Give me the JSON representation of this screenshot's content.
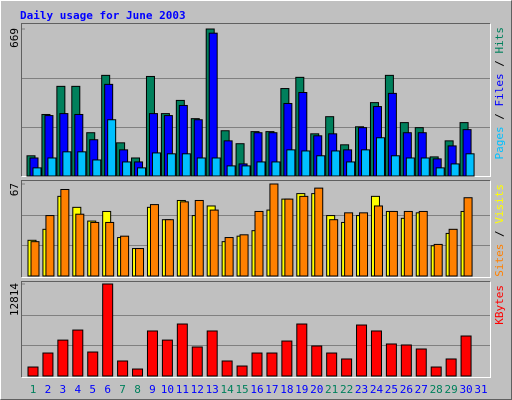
{
  "title": "Daily usage for June 2003",
  "legend_separator": " / ",
  "chart_data": [
    {
      "type": "bar",
      "ylim": [
        0,
        669
      ],
      "yticks": [
        669
      ],
      "series": [
        {
          "name": "Hits",
          "color": "#00805c",
          "values": [
            92,
            280,
            408,
            408,
            197,
            458,
            151,
            82,
            453,
            284,
            344,
            261,
            669,
            206,
            147,
            202,
            202,
            398,
            449,
            192,
            270,
            142,
            224,
            334,
            458,
            243,
            220,
            87,
            160,
            243,
            null
          ]
        },
        {
          "name": "Files",
          "color": "#0000ff",
          "values": [
            82,
            275,
            284,
            280,
            165,
            417,
            119,
            64,
            284,
            275,
            321,
            256,
            650,
            160,
            55,
            197,
            197,
            330,
            380,
            183,
            192,
            119,
            220,
            316,
            376,
            197,
            197,
            78,
            137,
            211,
            null
          ]
        },
        {
          "name": "Pages",
          "color": "#00c0ff",
          "values": [
            37,
            82,
            110,
            110,
            73,
            256,
            64,
            37,
            105,
            101,
            101,
            82,
            82,
            46,
            46,
            64,
            64,
            119,
            114,
            92,
            114,
            64,
            119,
            174,
            92,
            82,
            82,
            37,
            55,
            101,
            null
          ]
        }
      ]
    },
    {
      "type": "bar",
      "ylim": [
        0,
        67
      ],
      "yticks": [
        67
      ],
      "series": [
        {
          "name": "Visits",
          "color": "#ffff00",
          "values": [
            26,
            34,
            58,
            50,
            40,
            47,
            28,
            20,
            50,
            41,
            55,
            44,
            51,
            25,
            29,
            33,
            48,
            56,
            60,
            60,
            44,
            39,
            44,
            58,
            47,
            42,
            46,
            22,
            31,
            47,
            null
          ]
        },
        {
          "name": "Sites",
          "color": "#ff8000",
          "values": [
            25,
            44,
            63,
            45,
            39,
            39,
            29,
            20,
            52,
            41,
            54,
            55,
            48,
            28,
            30,
            47,
            67,
            56,
            58,
            64,
            41,
            46,
            46,
            51,
            47,
            47,
            47,
            23,
            34,
            57,
            null
          ]
        }
      ]
    },
    {
      "type": "bar",
      "ylim": [
        0,
        12814
      ],
      "yticks": [
        12814
      ],
      "categories": [
        "1",
        "2",
        "3",
        "4",
        "5",
        "6",
        "7",
        "8",
        "9",
        "10",
        "11",
        "12",
        "13",
        "14",
        "15",
        "16",
        "17",
        "18",
        "19",
        "20",
        "21",
        "22",
        "23",
        "24",
        "25",
        "26",
        "27",
        "28",
        "29",
        "30",
        "31"
      ],
      "category_colors": [
        "#00805c",
        "#0000ff",
        "#0000ff",
        "#0000ff",
        "#0000ff",
        "#0000ff",
        "#00805c",
        "#00805c",
        "#0000ff",
        "#0000ff",
        "#0000ff",
        "#0000ff",
        "#0000ff",
        "#00805c",
        "#00805c",
        "#0000ff",
        "#0000ff",
        "#0000ff",
        "#0000ff",
        "#0000ff",
        "#00805c",
        "#00805c",
        "#0000ff",
        "#0000ff",
        "#0000ff",
        "#0000ff",
        "#0000ff",
        "#00805c",
        "#00805c",
        "#0000ff",
        "#0000ff"
      ],
      "series": [
        {
          "name": "KBytes",
          "color": "#ff0000",
          "values": [
            1250,
            3200,
            5000,
            6400,
            3340,
            12814,
            2090,
            970,
            6270,
            5000,
            7240,
            4040,
            6270,
            2090,
            1390,
            3200,
            3200,
            4870,
            7240,
            4180,
            3200,
            2370,
            7100,
            6270,
            4460,
            4320,
            3760,
            1250,
            2370,
            5570,
            null
          ]
        }
      ]
    }
  ]
}
